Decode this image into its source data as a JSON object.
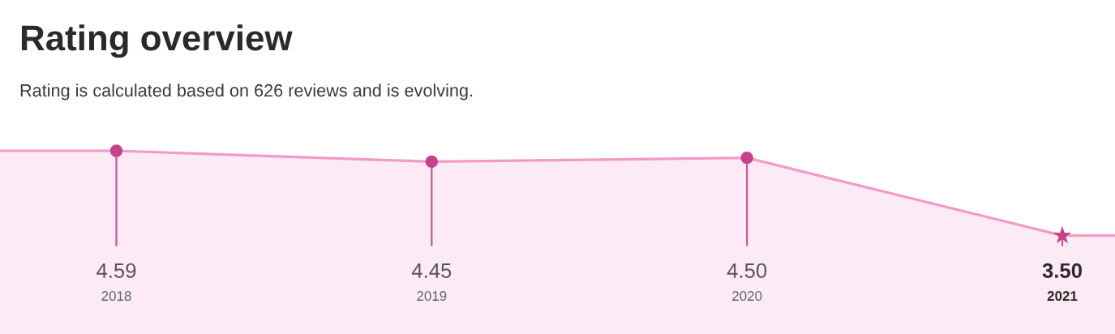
{
  "chart_data": {
    "type": "area",
    "title": "Rating overview",
    "subtitle": "Rating is calculated based on 626 reviews and is evolving.",
    "categories": [
      "2018",
      "2019",
      "2020",
      "2021"
    ],
    "tick_labels": "x",
    "series": [
      {
        "color": "#f29ac6",
        "values": [
          4.59,
          4.45,
          4.5,
          3.5
        ],
        "marker": "none"
      },
      {
        "type": "lollipop",
        "color": "#c5418b",
        "values": [
          4.59,
          4.45,
          4.5,
          null
        ],
        "marker": "circle",
        "value_labels": [
          "4.59",
          "4.45",
          "4.50",
          null
        ]
      },
      {
        "type": "lollipop",
        "color": "#c5418b",
        "values": [
          null,
          null,
          null,
          3.5
        ],
        "marker": "star",
        "value_labels": [
          null,
          null,
          null,
          "3.50"
        ]
      }
    ]
  }
}
